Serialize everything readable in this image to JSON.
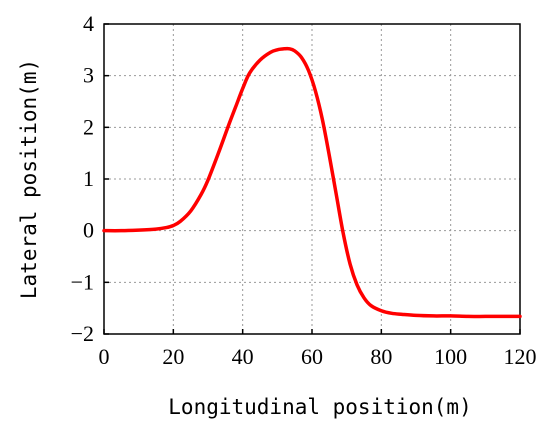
{
  "chart_data": {
    "type": "line",
    "xlabel": "Longitudinal position(m)",
    "ylabel": "Lateral position(m)",
    "xlim": [
      0,
      120
    ],
    "ylim": [
      -2,
      4
    ],
    "xticks": [
      0,
      20,
      40,
      60,
      80,
      100,
      120
    ],
    "yticks": [
      -2,
      -1,
      0,
      1,
      2,
      3,
      4
    ],
    "xtick_labels": [
      "0",
      "20",
      "40",
      "60",
      "80",
      "100",
      "120"
    ],
    "ytick_labels": [
      "−2",
      "−1",
      "0",
      "1",
      "2",
      "3",
      "4"
    ],
    "grid": true,
    "series": [
      {
        "color": "#ff0000",
        "x": [
          0,
          5,
          10,
          15,
          18,
          20,
          22,
          25,
          28,
          30,
          33,
          36,
          38,
          40,
          42,
          45,
          48,
          50,
          52,
          53.5,
          55,
          57,
          59,
          61,
          63,
          65,
          67,
          69,
          71,
          73,
          75,
          77,
          80,
          83,
          86,
          90,
          95,
          100,
          105,
          110,
          115,
          120
        ],
        "y": [
          0.0,
          0.0,
          0.01,
          0.03,
          0.06,
          0.1,
          0.18,
          0.38,
          0.7,
          0.98,
          1.5,
          2.05,
          2.4,
          2.75,
          3.05,
          3.3,
          3.45,
          3.5,
          3.52,
          3.52,
          3.48,
          3.35,
          3.1,
          2.7,
          2.15,
          1.45,
          0.7,
          -0.05,
          -0.65,
          -1.05,
          -1.3,
          -1.45,
          -1.55,
          -1.6,
          -1.62,
          -1.64,
          -1.65,
          -1.65,
          -1.66,
          -1.66,
          -1.66,
          -1.66
        ]
      }
    ]
  }
}
